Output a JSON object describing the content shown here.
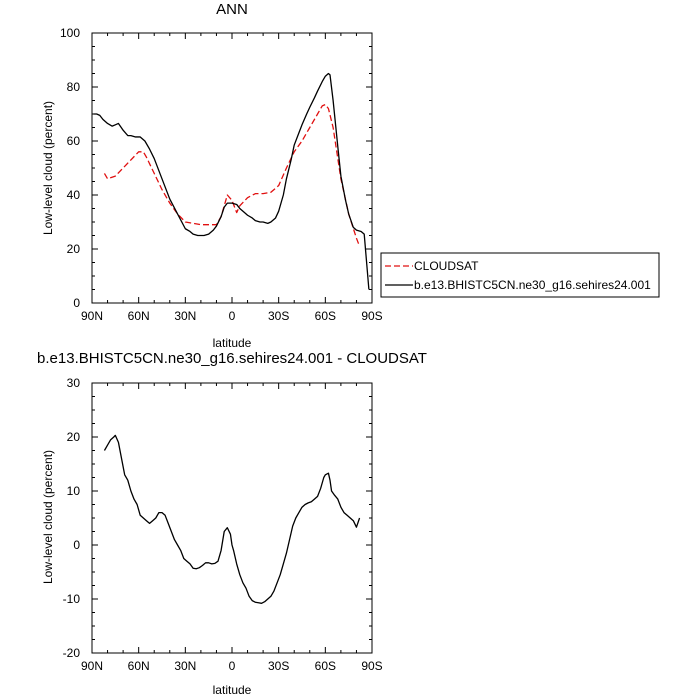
{
  "chart_data": [
    {
      "type": "line",
      "title": "ANN",
      "xlabel": "latitude",
      "ylabel": "Low-level cloud (percent)",
      "xlim": [
        90,
        -90
      ],
      "ylim": [
        0,
        100
      ],
      "x_ticks": [
        90,
        60,
        30,
        0,
        -30,
        -60,
        -90
      ],
      "x_tick_labels": [
        "90N",
        "60N",
        "30N",
        "0",
        "30S",
        "60S",
        "90S"
      ],
      "y_ticks": [
        0,
        20,
        40,
        60,
        80,
        100
      ],
      "y_tick_labels": [
        "0",
        "20",
        "40",
        "60",
        "80",
        "100"
      ],
      "grid": false,
      "legend_position": "right",
      "series": [
        {
          "name": "CLOUDSAT",
          "color": "#e01010",
          "dash": "dashed",
          "x": [
            82,
            80,
            75,
            70,
            65,
            60,
            57,
            55,
            50,
            45,
            40,
            35,
            30,
            25,
            20,
            15,
            10,
            7,
            5,
            3,
            0,
            -3,
            -5,
            -10,
            -15,
            -20,
            -25,
            -30,
            -35,
            -40,
            -45,
            -50,
            -55,
            -58,
            -60,
            -62,
            -65,
            -70,
            -75,
            -80,
            -82
          ],
          "y": [
            48,
            46,
            47,
            50,
            53,
            56,
            56,
            54,
            48,
            42,
            37,
            33,
            30,
            29.5,
            29,
            29,
            29,
            32,
            36,
            40,
            38,
            33.5,
            36,
            39,
            40.5,
            40.5,
            41,
            43.5,
            50,
            56,
            60,
            65,
            70,
            73,
            73.5,
            72,
            65,
            46,
            33,
            24,
            21
          ]
        },
        {
          "name": "b.e13.BHISTC5CN.ne30_g16.sehires24.001",
          "color": "#000000",
          "dash": "solid",
          "x": [
            89,
            87,
            85,
            83,
            80,
            77,
            75,
            73,
            70,
            67,
            65,
            62,
            59,
            56,
            53,
            50,
            45,
            40,
            35,
            30,
            27,
            25,
            22,
            20,
            18,
            15,
            12,
            10,
            7,
            5,
            3,
            0,
            -3,
            -5,
            -8,
            -10,
            -13,
            -15,
            -18,
            -20,
            -23,
            -25,
            -28,
            -30,
            -33,
            -35,
            -38,
            -40,
            -43,
            -45,
            -48,
            -50,
            -53,
            -55,
            -58,
            -60,
            -62,
            -63,
            -65,
            -68,
            -70,
            -73,
            -75,
            -78,
            -80,
            -83,
            -85,
            -88
          ],
          "y": [
            70,
            70,
            69.5,
            68,
            66.5,
            65.5,
            66,
            66.5,
            64,
            62,
            62,
            61.5,
            61.5,
            60,
            57,
            53.5,
            46,
            38.5,
            33,
            27.5,
            26.5,
            25.5,
            25,
            25,
            25,
            25.5,
            27,
            28.5,
            32,
            35.5,
            37,
            37,
            36.5,
            35,
            33.5,
            32.5,
            31.5,
            30.5,
            30,
            30,
            29.5,
            30,
            31.5,
            34,
            40,
            46,
            53,
            58.5,
            63,
            66,
            70,
            72.5,
            76,
            78.5,
            82,
            84,
            85,
            84.5,
            75,
            58,
            47,
            38,
            33,
            28,
            27,
            26.5,
            25.5,
            5
          ]
        }
      ]
    },
    {
      "type": "line",
      "title": "b.e13.BHISTC5CN.ne30_g16.sehires24.001 - CLOUDSAT",
      "xlabel": "latitude",
      "ylabel": "Low-level cloud (percent)",
      "xlim": [
        90,
        -90
      ],
      "ylim": [
        -20,
        30
      ],
      "x_ticks": [
        90,
        60,
        30,
        0,
        -30,
        -60,
        -90
      ],
      "x_tick_labels": [
        "90N",
        "60N",
        "30N",
        "0",
        "30S",
        "60S",
        "90S"
      ],
      "y_ticks": [
        -20,
        -10,
        0,
        10,
        20,
        30
      ],
      "y_tick_labels": [
        "-20",
        "-10",
        "0",
        "10",
        "20",
        "30"
      ],
      "grid": false,
      "series": [
        {
          "color": "#000000",
          "dash": "solid",
          "x": [
            82,
            80,
            78,
            76,
            75,
            73,
            71,
            69,
            67,
            65,
            63,
            61,
            59,
            57,
            55,
            53,
            51,
            49,
            47,
            45,
            43,
            41,
            39,
            37,
            35,
            33,
            31,
            29,
            27,
            25,
            23,
            21,
            19,
            17,
            15,
            13,
            11,
            9,
            7,
            5,
            3,
            1,
            0,
            -1,
            -3,
            -5,
            -7,
            -9,
            -11,
            -13,
            -15,
            -17,
            -19,
            -21,
            -23,
            -25,
            -27,
            -29,
            -31,
            -33,
            -35,
            -37,
            -39,
            -41,
            -43,
            -45,
            -47,
            -49,
            -51,
            -53,
            -55,
            -57,
            -59,
            -60,
            -62,
            -63,
            -64,
            -66,
            -68,
            -70,
            -72,
            -74,
            -76,
            -78,
            -80,
            -82
          ],
          "y": [
            17.5,
            18.5,
            19.5,
            20,
            20.3,
            19,
            16,
            13,
            12,
            10,
            8.5,
            7.5,
            5.5,
            5,
            4.5,
            4,
            4.5,
            5,
            6,
            6,
            5.5,
            4,
            2.5,
            1,
            0,
            -1,
            -2.5,
            -3,
            -3.5,
            -4.3,
            -4.4,
            -4.2,
            -3.8,
            -3.3,
            -3.3,
            -3.5,
            -3.4,
            -3,
            -1,
            2.5,
            3.2,
            2,
            0,
            -1,
            -3.5,
            -5.5,
            -7,
            -8,
            -9.5,
            -10.3,
            -10.6,
            -10.7,
            -10.8,
            -10.5,
            -10,
            -9.5,
            -8.5,
            -7,
            -5.5,
            -3.5,
            -1.5,
            1,
            3.5,
            5,
            6,
            7,
            7.5,
            7.8,
            8,
            8.5,
            9,
            10.5,
            12.5,
            13,
            13.3,
            12,
            10,
            9.2,
            8.5,
            7,
            6,
            5.5,
            5,
            4.5,
            3.3,
            5
          ]
        }
      ]
    }
  ]
}
